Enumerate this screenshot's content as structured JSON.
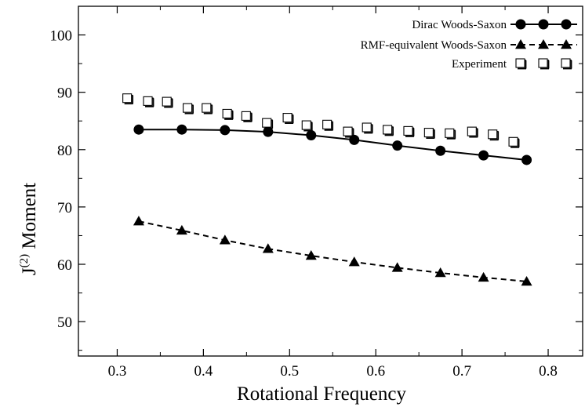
{
  "chart_data": {
    "type": "line",
    "title": "",
    "xlabel": "Rotational Frequency",
    "ylabel_main": "J",
    "ylabel_sup": "(2)",
    "ylabel_rest": " Moment",
    "xlim": [
      0.255,
      0.84
    ],
    "ylim": [
      44,
      105
    ],
    "xticks": [
      0.3,
      0.4,
      0.5,
      0.6,
      0.7,
      0.8
    ],
    "xtick_labels": [
      "0.3",
      "0.4",
      "0.5",
      "0.6",
      "0.7",
      "0.8"
    ],
    "yticks": [
      50,
      60,
      70,
      80,
      90,
      100
    ],
    "ytick_labels": [
      "50",
      "60",
      "70",
      "80",
      "90",
      "100"
    ],
    "grid": false,
    "legend_position": "top-right",
    "series": [
      {
        "name": "Dirac Woods-Saxon",
        "marker": "circle",
        "line": "solid",
        "x": [
          0.325,
          0.375,
          0.425,
          0.475,
          0.525,
          0.575,
          0.625,
          0.675,
          0.725,
          0.775
        ],
        "y": [
          83.5,
          83.5,
          83.4,
          83.1,
          82.5,
          81.7,
          80.7,
          79.8,
          79.0,
          78.2
        ]
      },
      {
        "name": "RMF-equivalent Woods-Saxon",
        "marker": "triangle",
        "line": "dashed",
        "x": [
          0.325,
          0.375,
          0.425,
          0.475,
          0.525,
          0.575,
          0.625,
          0.675,
          0.725,
          0.775
        ],
        "y": [
          67.5,
          65.9,
          64.2,
          62.7,
          61.5,
          60.4,
          59.4,
          58.5,
          57.7,
          57.0
        ]
      },
      {
        "name": "Experiment",
        "marker": "open-square",
        "line": "none",
        "x": [
          0.312,
          0.336,
          0.358,
          0.382,
          0.404,
          0.428,
          0.45,
          0.474,
          0.498,
          0.52,
          0.544,
          0.568,
          0.59,
          0.614,
          0.638,
          0.662,
          0.686,
          0.712,
          0.736,
          0.76
        ],
        "y": [
          88.9,
          88.4,
          88.3,
          87.2,
          87.2,
          86.2,
          85.8,
          84.6,
          85.5,
          84.2,
          84.3,
          83.1,
          83.8,
          83.4,
          83.2,
          82.9,
          82.8,
          83.1,
          82.6,
          81.3
        ]
      }
    ]
  }
}
